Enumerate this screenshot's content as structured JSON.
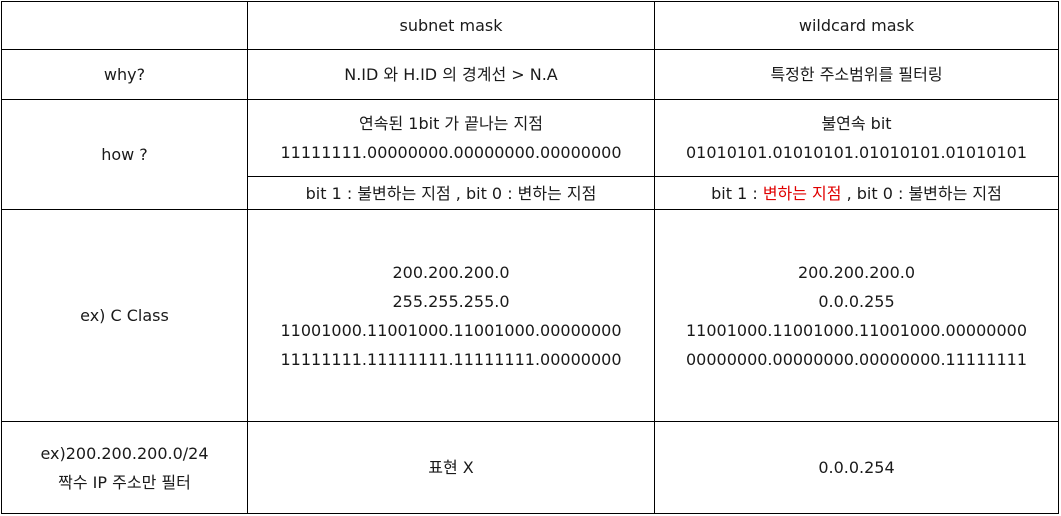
{
  "header": {
    "col1": "",
    "col2": "subnet mask",
    "col3": "wildcard mask"
  },
  "why": {
    "label": "why?",
    "subnet": "N.ID 와 H.ID 의 경계선 > N.A",
    "wildcard": "특정한 주소범위를 필터링"
  },
  "how": {
    "label": "how ?",
    "subnet_lines": [
      "연속된 1bit 가 끝나는 지점",
      "11111111.00000000.00000000.00000000"
    ],
    "wildcard_lines": [
      "불연속 bit",
      "01010101.01010101.01010101.01010101"
    ],
    "subnet_bits": "bit 1 : 불변하는 지점 , bit 0 : 변하는 지점",
    "wildcard_bits_prefix": "bit 1 : ",
    "wildcard_bits_highlight": "변하는 지점",
    "wildcard_bits_suffix": " , bit 0 : 불변하는 지점",
    "highlight_color": "#e00000"
  },
  "example_c": {
    "label": "ex) C Class",
    "subnet_lines": [
      "200.200.200.0",
      "255.255.255.0",
      "11001000.11001000.11001000.00000000",
      "11111111.11111111.11111111.00000000"
    ],
    "wildcard_lines": [
      "200.200.200.0",
      "0.0.0.255",
      "11001000.11001000.11001000.00000000",
      "00000000.00000000.00000000.11111111"
    ]
  },
  "example_even": {
    "label_lines": [
      "ex)200.200.200.0/24",
      "짝수 IP 주소만 필터"
    ],
    "subnet": "표현 X",
    "wildcard": "0.0.0.254"
  }
}
